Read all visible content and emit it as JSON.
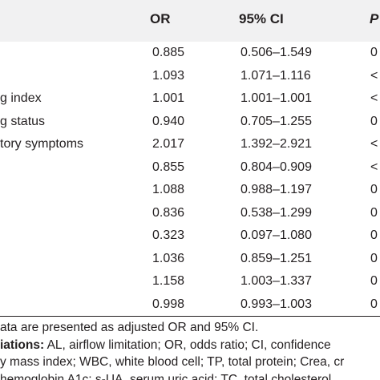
{
  "table": {
    "headers": {
      "or": "OR",
      "ci": "95% CI",
      "p": "P"
    },
    "rows": [
      {
        "label": "",
        "or": "0.885",
        "ci": "0.506–1.549",
        "p": "0"
      },
      {
        "label": "",
        "or": "1.093",
        "ci": "1.071–1.116",
        "p": "<"
      },
      {
        "label": "g index",
        "or": "1.001",
        "ci": "1.001–1.001",
        "p": "<"
      },
      {
        "label": "g status",
        "or": "0.940",
        "ci": "0.705–1.255",
        "p": "0"
      },
      {
        "label": "tory symptoms",
        "or": "2.017",
        "ci": "1.392–2.921",
        "p": "<"
      },
      {
        "label": "",
        "or": "0.855",
        "ci": "0.804–0.909",
        "p": "<"
      },
      {
        "label": "",
        "or": "1.088",
        "ci": "0.988–1.197",
        "p": "0"
      },
      {
        "label": "",
        "or": "0.836",
        "ci": "0.538–1.299",
        "p": "0"
      },
      {
        "label": "",
        "or": "0.323",
        "ci": "0.097–1.080",
        "p": "0"
      },
      {
        "label": "",
        "or": "1.036",
        "ci": "0.859–1.251",
        "p": "0"
      },
      {
        "label": "",
        "or": "1.158",
        "ci": "1.003–1.337",
        "p": "0"
      },
      {
        "label": "",
        "or": "0.998",
        "ci": "0.993–1.003",
        "p": "0"
      }
    ]
  },
  "notes": {
    "line1": "ata are presented as adjusted OR and 95% CI.",
    "line2_bold": "iations:",
    "line2_rest": " AL, airflow limitation; OR, odds ratio; CI, confidence",
    "line3": "y mass index; WBC, white blood cell; TP, total protein; Crea, cr",
    "line4": "hemoglobin A1c; s-UA, serum uric acid; TC, total cholesterol."
  }
}
